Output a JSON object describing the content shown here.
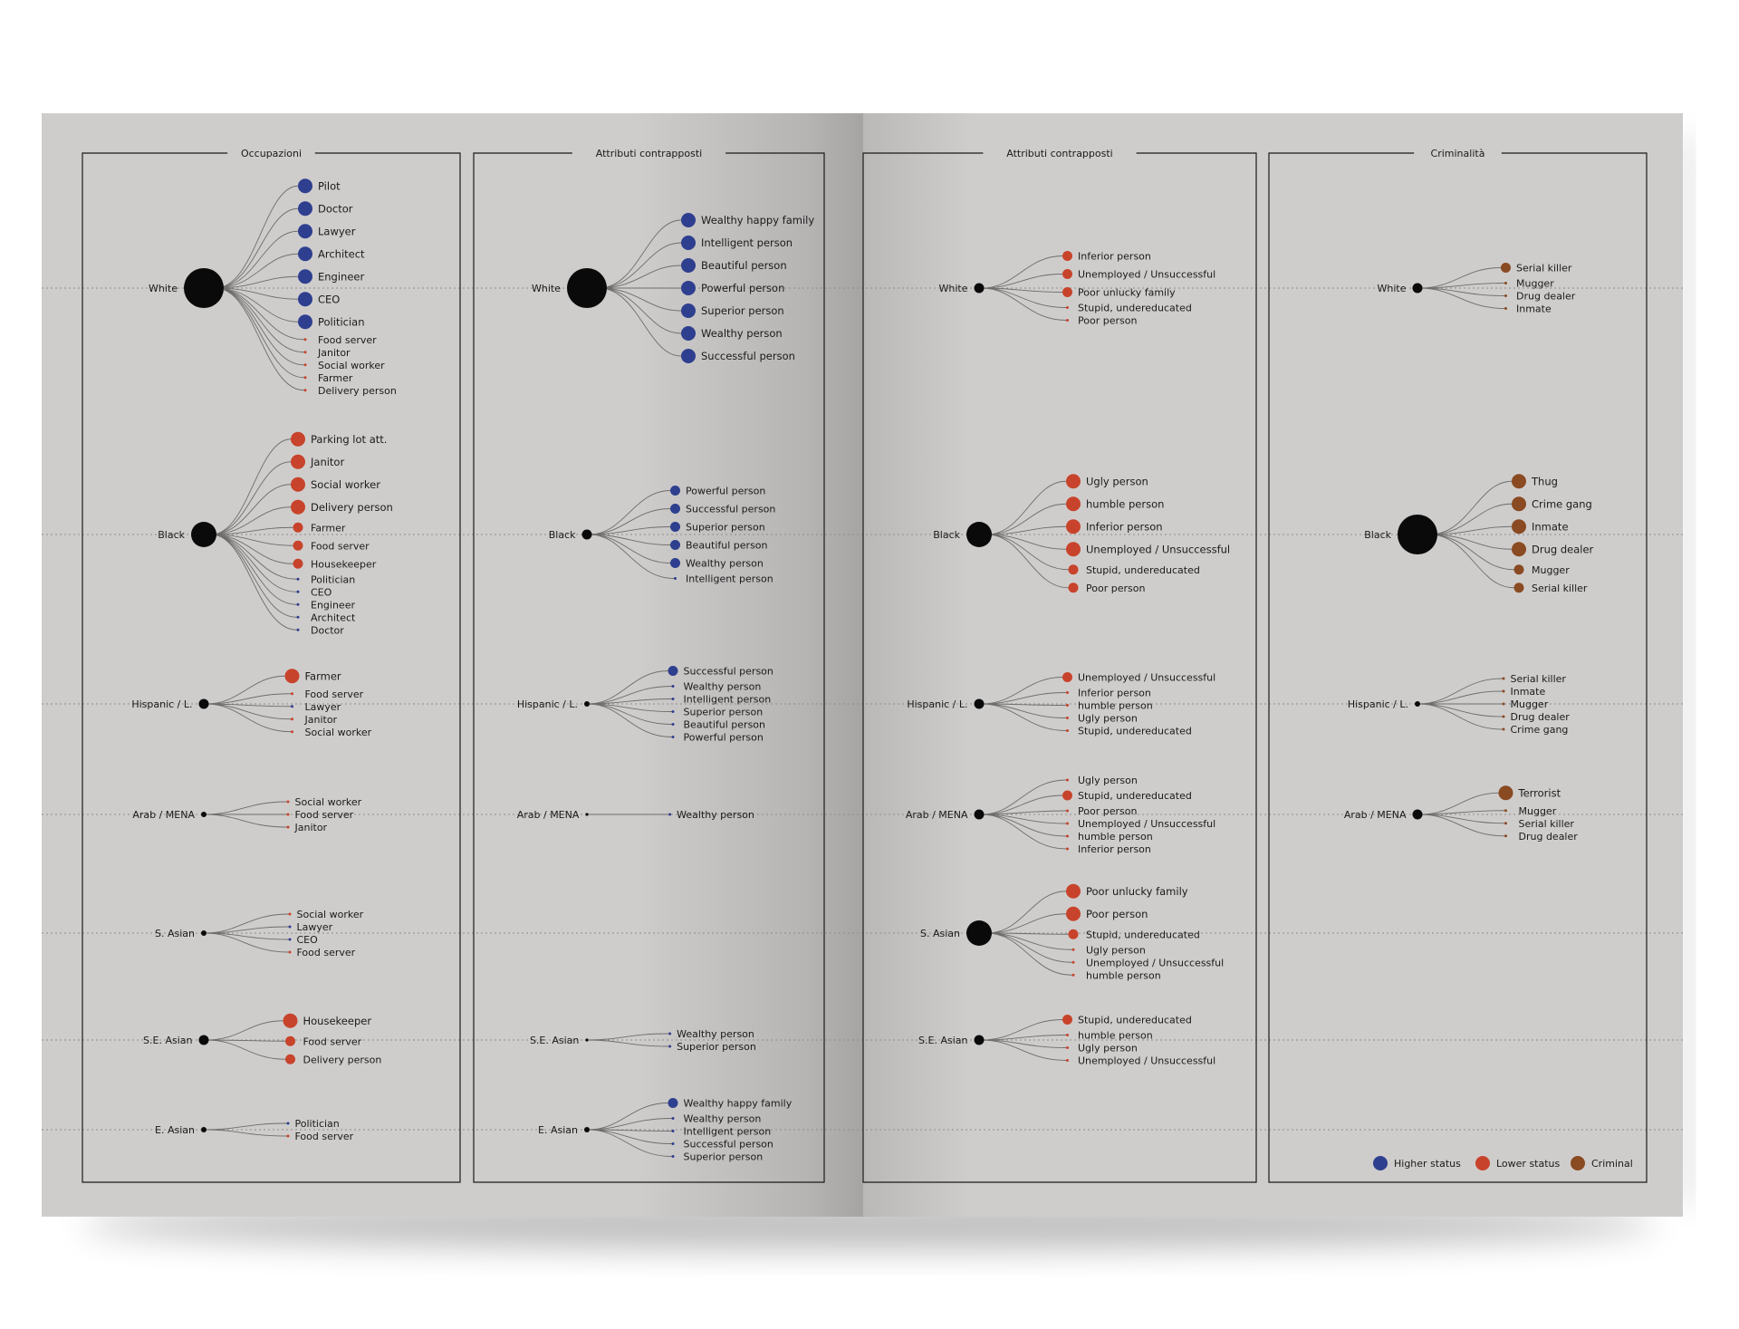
{
  "colors": {
    "higher": "#2e3f8f",
    "lower": "#c8432b",
    "criminal": "#8a4a22",
    "node": "#0a0a0a",
    "paper": "#cfcdcc",
    "ink": "#1a1a1a"
  },
  "panels": [
    {
      "title": "Occupazioni",
      "groups": [
        {
          "label": "White",
          "size": 4,
          "items": [
            {
              "label": "Pilot",
              "cat": "higher",
              "size": 3
            },
            {
              "label": "Doctor",
              "cat": "higher",
              "size": 3
            },
            {
              "label": "Lawyer",
              "cat": "higher",
              "size": 3
            },
            {
              "label": "Architect",
              "cat": "higher",
              "size": 3
            },
            {
              "label": "Engineer",
              "cat": "higher",
              "size": 3
            },
            {
              "label": "CEO",
              "cat": "higher",
              "size": 3
            },
            {
              "label": "Politician",
              "cat": "higher",
              "size": 3
            },
            {
              "label": "Food server",
              "cat": "lower",
              "size": 1
            },
            {
              "label": "Janitor",
              "cat": "lower",
              "size": 1
            },
            {
              "label": "Social worker",
              "cat": "lower",
              "size": 1
            },
            {
              "label": "Farmer",
              "cat": "lower",
              "size": 1
            },
            {
              "label": "Delivery person",
              "cat": "lower",
              "size": 1
            }
          ]
        },
        {
          "label": "Black",
          "size": 3,
          "items": [
            {
              "label": "Parking lot att.",
              "cat": "lower",
              "size": 3
            },
            {
              "label": "Janitor",
              "cat": "lower",
              "size": 3
            },
            {
              "label": "Social worker",
              "cat": "lower",
              "size": 3
            },
            {
              "label": "Delivery person",
              "cat": "lower",
              "size": 3
            },
            {
              "label": "Farmer",
              "cat": "lower",
              "size": 2
            },
            {
              "label": "Food server",
              "cat": "lower",
              "size": 2
            },
            {
              "label": "Housekeeper",
              "cat": "lower",
              "size": 2
            },
            {
              "label": "Politician",
              "cat": "higher",
              "size": 1
            },
            {
              "label": "CEO",
              "cat": "higher",
              "size": 1
            },
            {
              "label": "Engineer",
              "cat": "higher",
              "size": 1
            },
            {
              "label": "Architect",
              "cat": "higher",
              "size": 1
            },
            {
              "label": "Doctor",
              "cat": "higher",
              "size": 1
            }
          ]
        },
        {
          "label": "Hispanic / L.",
          "size": 2,
          "items": [
            {
              "label": "Farmer",
              "cat": "lower",
              "size": 3
            },
            {
              "label": "Food server",
              "cat": "lower",
              "size": 1
            },
            {
              "label": "Lawyer",
              "cat": "higher",
              "size": 1
            },
            {
              "label": "Janitor",
              "cat": "lower",
              "size": 1
            },
            {
              "label": "Social worker",
              "cat": "lower",
              "size": 1
            }
          ]
        },
        {
          "label": "Arab / MENA",
          "size": 1,
          "items": [
            {
              "label": "Social worker",
              "cat": "lower",
              "size": 1
            },
            {
              "label": "Food server",
              "cat": "lower",
              "size": 1
            },
            {
              "label": "Janitor",
              "cat": "lower",
              "size": 1
            }
          ]
        },
        {
          "label": "S. Asian",
          "size": 1,
          "items": [
            {
              "label": "Social worker",
              "cat": "lower",
              "size": 1
            },
            {
              "label": "Lawyer",
              "cat": "higher",
              "size": 1
            },
            {
              "label": "CEO",
              "cat": "higher",
              "size": 1
            },
            {
              "label": "Food server",
              "cat": "lower",
              "size": 1
            }
          ]
        },
        {
          "label": "S.E. Asian",
          "size": 2,
          "items": [
            {
              "label": "Housekeeper",
              "cat": "lower",
              "size": 3
            },
            {
              "label": "Food server",
              "cat": "lower",
              "size": 2
            },
            {
              "label": "Delivery person",
              "cat": "lower",
              "size": 2
            }
          ]
        },
        {
          "label": "E. Asian",
          "size": 1,
          "items": [
            {
              "label": "Politician",
              "cat": "higher",
              "size": 1
            },
            {
              "label": "Food server",
              "cat": "lower",
              "size": 1
            }
          ]
        }
      ]
    },
    {
      "title": "Attributi contrapposti",
      "groups": [
        {
          "label": "White",
          "size": 4,
          "items": [
            {
              "label": "Wealthy happy family",
              "cat": "higher",
              "size": 3
            },
            {
              "label": "Intelligent person",
              "cat": "higher",
              "size": 3
            },
            {
              "label": "Beautiful person",
              "cat": "higher",
              "size": 3
            },
            {
              "label": "Powerful person",
              "cat": "higher",
              "size": 3
            },
            {
              "label": "Superior person",
              "cat": "higher",
              "size": 3
            },
            {
              "label": "Wealthy person",
              "cat": "higher",
              "size": 3
            },
            {
              "label": "Successful person",
              "cat": "higher",
              "size": 3
            }
          ]
        },
        {
          "label": "Black",
          "size": 2,
          "items": [
            {
              "label": "Powerful person",
              "cat": "higher",
              "size": 2
            },
            {
              "label": "Successful person",
              "cat": "higher",
              "size": 2
            },
            {
              "label": "Superior person",
              "cat": "higher",
              "size": 2
            },
            {
              "label": "Beautiful person",
              "cat": "higher",
              "size": 2
            },
            {
              "label": "Wealthy person",
              "cat": "higher",
              "size": 2
            },
            {
              "label": "Intelligent person",
              "cat": "higher",
              "size": 1
            }
          ]
        },
        {
          "label": "Hispanic / L.",
          "size": 1,
          "items": [
            {
              "label": "Successful person",
              "cat": "higher",
              "size": 2
            },
            {
              "label": "Wealthy person",
              "cat": "higher",
              "size": 1
            },
            {
              "label": "Intelligent person",
              "cat": "higher",
              "size": 1
            },
            {
              "label": "Superior person",
              "cat": "higher",
              "size": 1
            },
            {
              "label": "Beautiful person",
              "cat": "higher",
              "size": 1
            },
            {
              "label": "Powerful person",
              "cat": "higher",
              "size": 1
            }
          ]
        },
        {
          "label": "Arab / MENA",
          "size": 0,
          "items": [
            {
              "label": "Wealthy person",
              "cat": "higher",
              "size": 1
            }
          ]
        },
        {
          "label": "S.E. Asian",
          "size": 0,
          "items": [
            {
              "label": "Wealthy person",
              "cat": "higher",
              "size": 1
            },
            {
              "label": "Superior person",
              "cat": "higher",
              "size": 1
            }
          ]
        },
        {
          "label": "E. Asian",
          "size": 1,
          "items": [
            {
              "label": "Wealthy happy family",
              "cat": "higher",
              "size": 2
            },
            {
              "label": "Wealthy person",
              "cat": "higher",
              "size": 1
            },
            {
              "label": "Intelligent person",
              "cat": "higher",
              "size": 1
            },
            {
              "label": "Successful person",
              "cat": "higher",
              "size": 1
            },
            {
              "label": "Superior person",
              "cat": "higher",
              "size": 1
            }
          ]
        }
      ]
    },
    {
      "title": "Attributi contrapposti",
      "groups": [
        {
          "label": "White",
          "size": 2,
          "items": [
            {
              "label": "Inferior person",
              "cat": "lower",
              "size": 2
            },
            {
              "label": "Unemployed / Unsuccessful",
              "cat": "lower",
              "size": 2
            },
            {
              "label": "Poor unlucky family",
              "cat": "lower",
              "size": 2
            },
            {
              "label": "Stupid, undereducated",
              "cat": "lower",
              "size": 1
            },
            {
              "label": "Poor person",
              "cat": "lower",
              "size": 1
            }
          ]
        },
        {
          "label": "Black",
          "size": 3,
          "items": [
            {
              "label": "Ugly person",
              "cat": "lower",
              "size": 3
            },
            {
              "label": "humble person",
              "cat": "lower",
              "size": 3
            },
            {
              "label": "Inferior person",
              "cat": "lower",
              "size": 3
            },
            {
              "label": "Unemployed / Unsuccessful",
              "cat": "lower",
              "size": 3
            },
            {
              "label": "Stupid, undereducated",
              "cat": "lower",
              "size": 2
            },
            {
              "label": "Poor person",
              "cat": "lower",
              "size": 2
            }
          ]
        },
        {
          "label": "Hispanic / L.",
          "size": 2,
          "items": [
            {
              "label": "Unemployed / Unsuccessful",
              "cat": "lower",
              "size": 2
            },
            {
              "label": "Inferior person",
              "cat": "lower",
              "size": 1
            },
            {
              "label": "humble person",
              "cat": "lower",
              "size": 1
            },
            {
              "label": "Ugly person",
              "cat": "lower",
              "size": 1
            },
            {
              "label": "Stupid, undereducated",
              "cat": "lower",
              "size": 1
            }
          ]
        },
        {
          "label": "Arab / MENA",
          "size": 2,
          "items": [
            {
              "label": "Ugly person",
              "cat": "lower",
              "size": 1
            },
            {
              "label": "Stupid, undereducated",
              "cat": "lower",
              "size": 2
            },
            {
              "label": "Poor person",
              "cat": "lower",
              "size": 1
            },
            {
              "label": "Unemployed / Unsuccessful",
              "cat": "lower",
              "size": 1
            },
            {
              "label": "humble person",
              "cat": "lower",
              "size": 1
            },
            {
              "label": "Inferior person",
              "cat": "lower",
              "size": 1
            }
          ]
        },
        {
          "label": "S. Asian",
          "size": 3,
          "items": [
            {
              "label": "Poor unlucky family",
              "cat": "lower",
              "size": 3
            },
            {
              "label": "Poor person",
              "cat": "lower",
              "size": 3
            },
            {
              "label": "Stupid, undereducated",
              "cat": "lower",
              "size": 2
            },
            {
              "label": "Ugly person",
              "cat": "lower",
              "size": 1
            },
            {
              "label": "Unemployed / Unsuccessful",
              "cat": "lower",
              "size": 1
            },
            {
              "label": "humble person",
              "cat": "lower",
              "size": 1
            }
          ]
        },
        {
          "label": "S.E. Asian",
          "size": 2,
          "items": [
            {
              "label": "Stupid, undereducated",
              "cat": "lower",
              "size": 2
            },
            {
              "label": "humble person",
              "cat": "lower",
              "size": 1
            },
            {
              "label": "Ugly person",
              "cat": "lower",
              "size": 1
            },
            {
              "label": "Unemployed / Unsuccessful",
              "cat": "lower",
              "size": 1
            }
          ]
        }
      ]
    },
    {
      "title": "Criminalità",
      "groups": [
        {
          "label": "White",
          "size": 2,
          "items": [
            {
              "label": "Serial killer",
              "cat": "criminal",
              "size": 2
            },
            {
              "label": "Mugger",
              "cat": "criminal",
              "size": 1
            },
            {
              "label": "Drug dealer",
              "cat": "criminal",
              "size": 1
            },
            {
              "label": "Inmate",
              "cat": "criminal",
              "size": 1
            }
          ]
        },
        {
          "label": "Black",
          "size": 4,
          "items": [
            {
              "label": "Thug",
              "cat": "criminal",
              "size": 3
            },
            {
              "label": "Crime gang",
              "cat": "criminal",
              "size": 3
            },
            {
              "label": "Inmate",
              "cat": "criminal",
              "size": 3
            },
            {
              "label": "Drug dealer",
              "cat": "criminal",
              "size": 3
            },
            {
              "label": "Mugger",
              "cat": "criminal",
              "size": 2
            },
            {
              "label": "Serial killer",
              "cat": "criminal",
              "size": 2
            }
          ]
        },
        {
          "label": "Hispanic / L.",
          "size": 1,
          "items": [
            {
              "label": "Serial killer",
              "cat": "criminal",
              "size": 1
            },
            {
              "label": "Inmate",
              "cat": "criminal",
              "size": 1
            },
            {
              "label": "Mugger",
              "cat": "criminal",
              "size": 1
            },
            {
              "label": "Drug dealer",
              "cat": "criminal",
              "size": 1
            },
            {
              "label": "Crime gang",
              "cat": "criminal",
              "size": 1
            }
          ]
        },
        {
          "label": "Arab / MENA",
          "size": 2,
          "items": [
            {
              "label": "Terrorist",
              "cat": "criminal",
              "size": 3
            },
            {
              "label": "Mugger",
              "cat": "criminal",
              "size": 1
            },
            {
              "label": "Serial killer",
              "cat": "criminal",
              "size": 1
            },
            {
              "label": "Drug dealer",
              "cat": "criminal",
              "size": 1
            }
          ]
        }
      ]
    }
  ],
  "legend": [
    {
      "label": "Higher status",
      "cat": "higher"
    },
    {
      "label": "Lower status",
      "cat": "lower"
    },
    {
      "label": "Criminal",
      "cat": "criminal"
    }
  ]
}
